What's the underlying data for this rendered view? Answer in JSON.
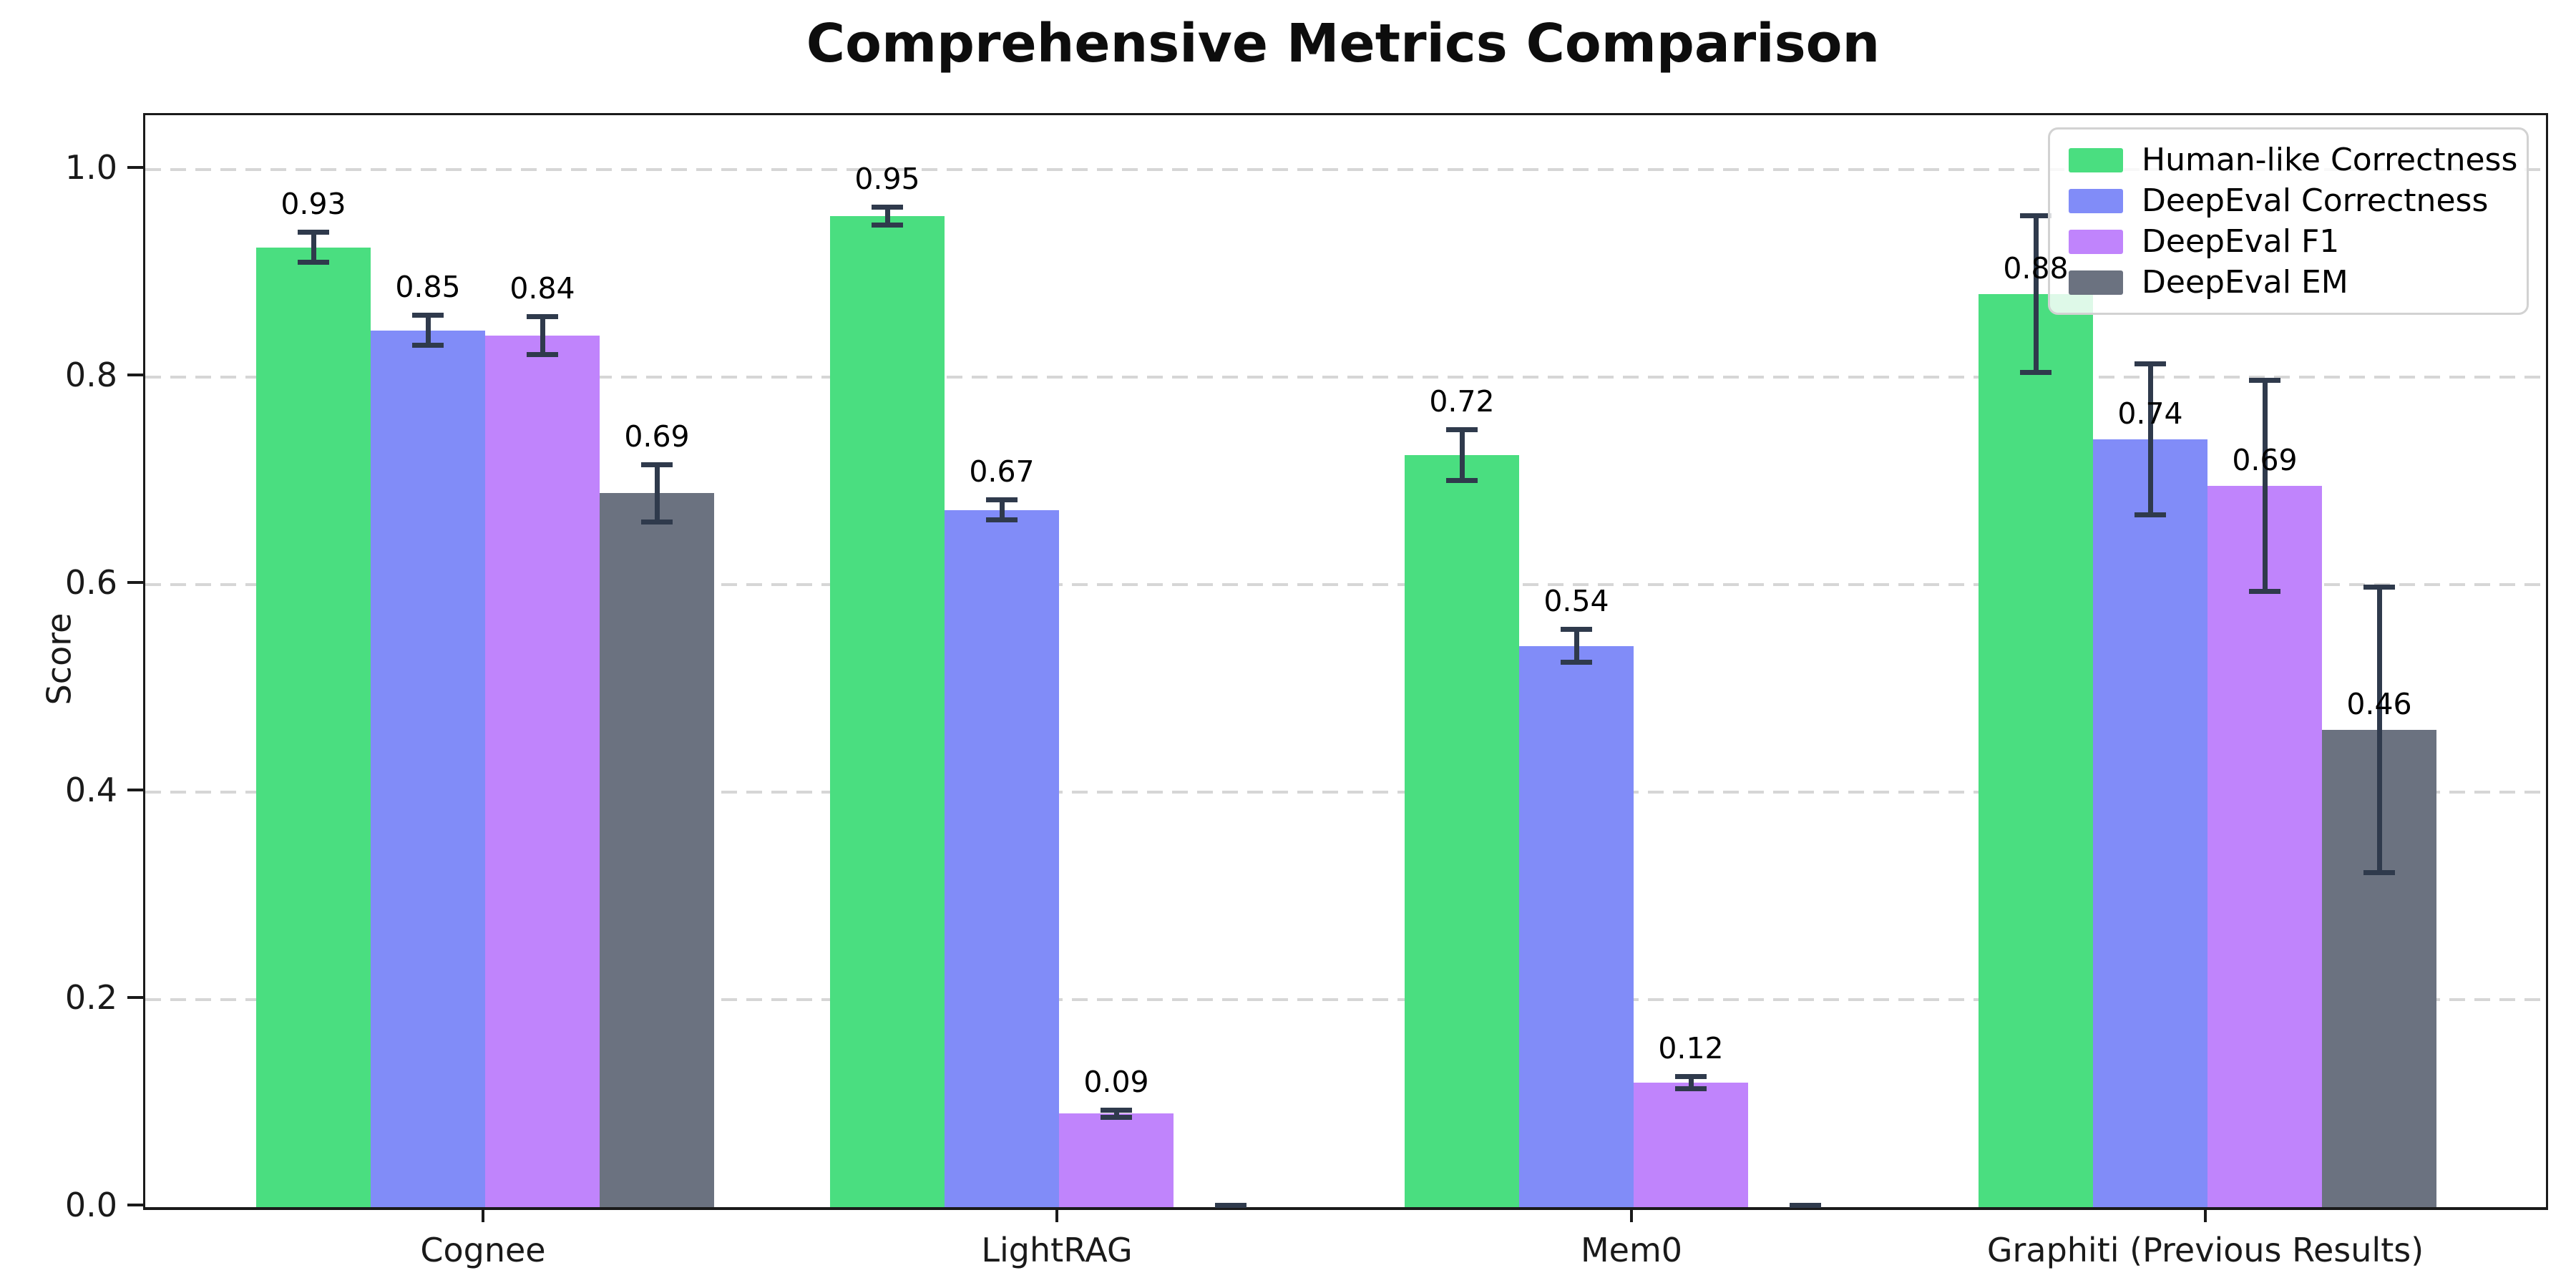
{
  "title": "Comprehensive Metrics Comparison",
  "ylabel": "Score",
  "chart_data": {
    "type": "bar",
    "title": "Comprehensive Metrics Comparison",
    "xlabel": "",
    "ylabel": "Score",
    "categories": [
      "Cognee",
      "LightRAG",
      "Mem0",
      "Graphiti (Previous Results)"
    ],
    "series": [
      {
        "name": "Human-like Correctness",
        "color": "#4ade80",
        "values": [
          0.93,
          0.95,
          0.72,
          0.88
        ],
        "bar_heights": [
          0.925,
          0.955,
          0.725,
          0.88
        ],
        "errors": [
          0.017,
          0.011,
          0.027,
          0.078
        ],
        "labels": [
          "0.93",
          "0.95",
          "0.72",
          "0.88"
        ]
      },
      {
        "name": "DeepEval Correctness",
        "color": "#818cf8",
        "values": [
          0.85,
          0.67,
          0.54,
          0.74
        ],
        "bar_heights": [
          0.845,
          0.672,
          0.541,
          0.74
        ],
        "errors": [
          0.017,
          0.012,
          0.018,
          0.075
        ],
        "labels": [
          "0.85",
          "0.67",
          "0.54",
          "0.74"
        ]
      },
      {
        "name": "DeepEval F1",
        "color": "#c084fc",
        "values": [
          0.84,
          0.09,
          0.12,
          0.69
        ],
        "bar_heights": [
          0.84,
          0.09,
          0.12,
          0.695
        ],
        "errors": [
          0.021,
          0.006,
          0.008,
          0.104
        ],
        "labels": [
          "0.84",
          "0.09",
          "0.12",
          "0.69"
        ]
      },
      {
        "name": "DeepEval EM",
        "color": "#6b7280",
        "values": [
          0.69,
          0.0,
          0.0,
          0.46
        ],
        "bar_heights": [
          0.688,
          0.0,
          0.0,
          0.46
        ],
        "errors": [
          0.03,
          0.004,
          0.004,
          0.14
        ],
        "labels": [
          "0.69",
          "",
          "",
          "0.46"
        ]
      }
    ],
    "yticks": [
      "0.0",
      "0.2",
      "0.4",
      "0.6",
      "0.8",
      "1.0"
    ],
    "ylim": [
      0.0,
      1.05
    ],
    "grid": "horizontal-dashed",
    "legend_position": "upper right"
  },
  "colors": {
    "error_bar": "#2f3a4c",
    "gridline": "#d6d6d6",
    "spine": "#1a1a1a",
    "background": "#ffffff"
  }
}
